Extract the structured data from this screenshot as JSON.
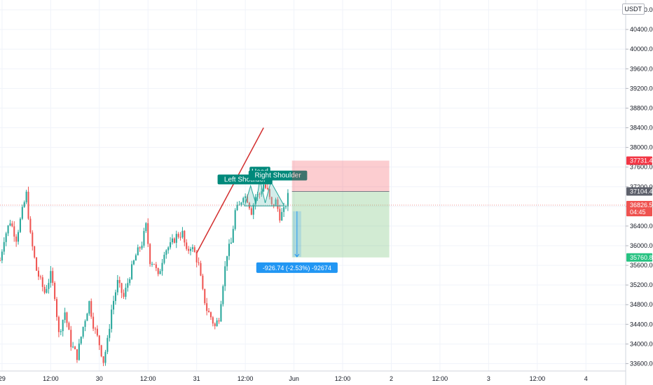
{
  "currency_button": "USDT",
  "chart_data": {
    "type": "candlestick",
    "symbol_currency": "USDT",
    "ylim": [
      33450,
      41000
    ],
    "y_ticks": [
      33600,
      34000,
      34400,
      34800,
      35200,
      35600,
      36000,
      36400,
      36800,
      37200,
      37600,
      38000,
      38400,
      38800,
      39200,
      39600,
      40000,
      40400,
      40800
    ],
    "x_ticks": [
      {
        "label": "29",
        "t": 0
      },
      {
        "label": "12:00",
        "t": 12
      },
      {
        "label": "30",
        "t": 24
      },
      {
        "label": "12:00",
        "t": 36
      },
      {
        "label": "31",
        "t": 48
      },
      {
        "label": "12:00",
        "t": 60
      },
      {
        "label": "Jun",
        "t": 72
      },
      {
        "label": "12:00",
        "t": 84
      },
      {
        "label": "2",
        "t": 96
      },
      {
        "label": "12:00",
        "t": 108
      },
      {
        "label": "3",
        "t": 120
      },
      {
        "label": "12:00",
        "t": 132
      },
      {
        "label": "4",
        "t": 144
      }
    ],
    "x_range_hours": [
      -0.5,
      153.8
    ],
    "candle_interval_hours": 0.5,
    "close_anchors": [
      [
        -0.5,
        35700
      ],
      [
        0.5,
        36150
      ],
      [
        2,
        36500
      ],
      [
        3.5,
        36150
      ],
      [
        5,
        36700
      ],
      [
        6,
        37050
      ],
      [
        7,
        36200
      ],
      [
        8.5,
        35500
      ],
      [
        10.5,
        35050
      ],
      [
        12,
        35400
      ],
      [
        13,
        35000
      ],
      [
        14,
        34200
      ],
      [
        15.5,
        34650
      ],
      [
        17,
        34000
      ],
      [
        18.5,
        33750
      ],
      [
        20,
        34350
      ],
      [
        21.5,
        34850
      ],
      [
        22.5,
        34400
      ],
      [
        24,
        34000
      ],
      [
        25,
        33650
      ],
      [
        26,
        34050
      ],
      [
        27,
        34700
      ],
      [
        28.5,
        35250
      ],
      [
        30,
        34950
      ],
      [
        31.5,
        35400
      ],
      [
        33,
        35800
      ],
      [
        34.5,
        36050
      ],
      [
        35.5,
        36400
      ],
      [
        36.5,
        35700
      ],
      [
        37.5,
        35650
      ],
      [
        38.5,
        35350
      ],
      [
        40,
        35900
      ],
      [
        41.5,
        36000
      ],
      [
        43,
        36200
      ],
      [
        44.5,
        36250
      ],
      [
        45.5,
        35850
      ],
      [
        46.5,
        36000
      ],
      [
        47.5,
        35850
      ],
      [
        48.5,
        35600
      ],
      [
        49.5,
        35050
      ],
      [
        50.5,
        34700
      ],
      [
        51.5,
        34550
      ],
      [
        52.5,
        34350
      ],
      [
        53.5,
        34550
      ],
      [
        54.5,
        35250
      ],
      [
        55.5,
        35850
      ],
      [
        56.5,
        36050
      ],
      [
        57.5,
        36700
      ],
      [
        58.5,
        36800
      ],
      [
        59.5,
        37050
      ],
      [
        60.5,
        36950
      ],
      [
        61.5,
        36700
      ],
      [
        62.5,
        37000
      ],
      [
        63.5,
        37050
      ],
      [
        64.5,
        37250
      ],
      [
        65.5,
        37100
      ],
      [
        66.5,
        36800
      ],
      [
        67.5,
        36900
      ],
      [
        68.5,
        36600
      ],
      [
        69.5,
        36700
      ],
      [
        70.5,
        37000
      ]
    ],
    "last_price": 36826.56,
    "countdown": "04:45",
    "trendline": {
      "from": {
        "t": 48,
        "price": 35850
      },
      "to": {
        "t": 64.5,
        "price": 38400
      },
      "color": "#d32f2f"
    },
    "pattern": {
      "name": "Head and Shoulders",
      "points": [
        [
          59.8,
          36810
        ],
        [
          61.3,
          37220
        ],
        [
          62.6,
          36850
        ],
        [
          63.6,
          37350
        ],
        [
          64.9,
          36870
        ],
        [
          66.3,
          37300
        ],
        [
          69.6,
          36810
        ]
      ],
      "labels": {
        "left_shoulder": "Left Shoulder",
        "head": "Head",
        "right_shoulder": "Right Shoulder"
      },
      "fill": "#80cbc4"
    },
    "short_position": {
      "t_start": 71.5,
      "t_end": 95.5,
      "entry": 37104.4,
      "stop": 37731.41,
      "target": 35760.83,
      "entry_label": "37104.40",
      "stop_label": "37731.41",
      "target_label": "35760.83",
      "stop_color": "#f23645",
      "target_color": "#22ab94"
    },
    "measure": {
      "t": 71.7,
      "from_price": 36700,
      "to_price": 35773,
      "text": "-926.74 (-2.53%) -92674"
    },
    "colors": {
      "up": "#26a69a",
      "down": "#ef5350",
      "grid": "#f0f3fa",
      "axis_text": "#131722",
      "measure": "#2196f3"
    }
  }
}
